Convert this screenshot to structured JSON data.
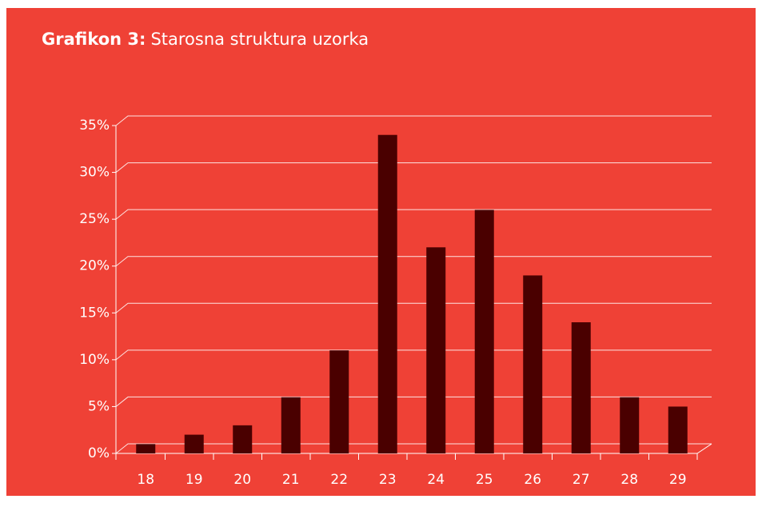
{
  "chart_data": {
    "type": "bar",
    "title_label": "Grafikon 3:",
    "title": "Starosna struktura uzorka",
    "categories": [
      "18",
      "19",
      "20",
      "21",
      "22",
      "23",
      "24",
      "25",
      "26",
      "27",
      "28",
      "29"
    ],
    "values": [
      1,
      2,
      3,
      6,
      11,
      34,
      22,
      26,
      19,
      14,
      6,
      5
    ],
    "color": "#4a0000",
    "background": "#ef4136",
    "ylim": [
      0,
      35
    ],
    "yticks": [
      {
        "value": 0,
        "label": "0%"
      },
      {
        "value": 5,
        "label": "5%"
      },
      {
        "value": 10,
        "label": "10%"
      },
      {
        "value": 15,
        "label": "15%"
      },
      {
        "value": 20,
        "label": "20%"
      },
      {
        "value": 25,
        "label": "25%"
      },
      {
        "value": 30,
        "label": "30%"
      },
      {
        "value": 35,
        "label": "35%"
      }
    ],
    "grid": true
  }
}
